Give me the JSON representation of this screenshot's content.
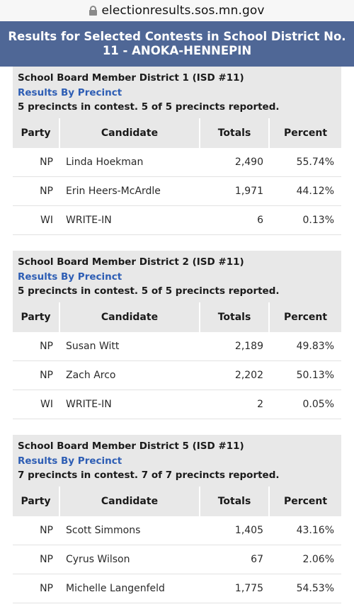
{
  "url": "electionresults.sos.mn.gov",
  "banner": "Results for Selected Contests in School District No. 11 - ANOKA-HENNEPIN",
  "columns": {
    "party": "Party",
    "candidate": "Candidate",
    "totals": "Totals",
    "percent": "Percent"
  },
  "contests": [
    {
      "title": "School Board Member District 1 (ISD #11)",
      "link": "Results By Precinct",
      "precincts": "5 precincts in contest. 5 of 5 precincts reported.",
      "rows": [
        {
          "party": "NP",
          "candidate": "Linda Hoekman",
          "totals": "2,490",
          "percent": "55.74%"
        },
        {
          "party": "NP",
          "candidate": "Erin Heers-McArdle",
          "totals": "1,971",
          "percent": "44.12%"
        },
        {
          "party": "WI",
          "candidate": "WRITE-IN",
          "totals": "6",
          "percent": "0.13%"
        }
      ]
    },
    {
      "title": "School Board Member District 2 (ISD #11)",
      "link": "Results By Precinct",
      "precincts": "5 precincts in contest. 5 of 5 precincts reported.",
      "rows": [
        {
          "party": "NP",
          "candidate": "Susan Witt",
          "totals": "2,189",
          "percent": "49.83%"
        },
        {
          "party": "NP",
          "candidate": "Zach Arco",
          "totals": "2,202",
          "percent": "50.13%"
        },
        {
          "party": "WI",
          "candidate": "WRITE-IN",
          "totals": "2",
          "percent": "0.05%"
        }
      ]
    },
    {
      "title": "School Board Member District 5 (ISD #11)",
      "link": "Results By Precinct",
      "precincts": "7 precincts in contest. 7 of 7 precincts reported.",
      "rows": [
        {
          "party": "NP",
          "candidate": "Scott Simmons",
          "totals": "1,405",
          "percent": "43.16%"
        },
        {
          "party": "NP",
          "candidate": "Cyrus Wilson",
          "totals": "67",
          "percent": "2.06%"
        },
        {
          "party": "NP",
          "candidate": "Michelle Langenfeld",
          "totals": "1,775",
          "percent": "54.53%"
        }
      ]
    }
  ]
}
